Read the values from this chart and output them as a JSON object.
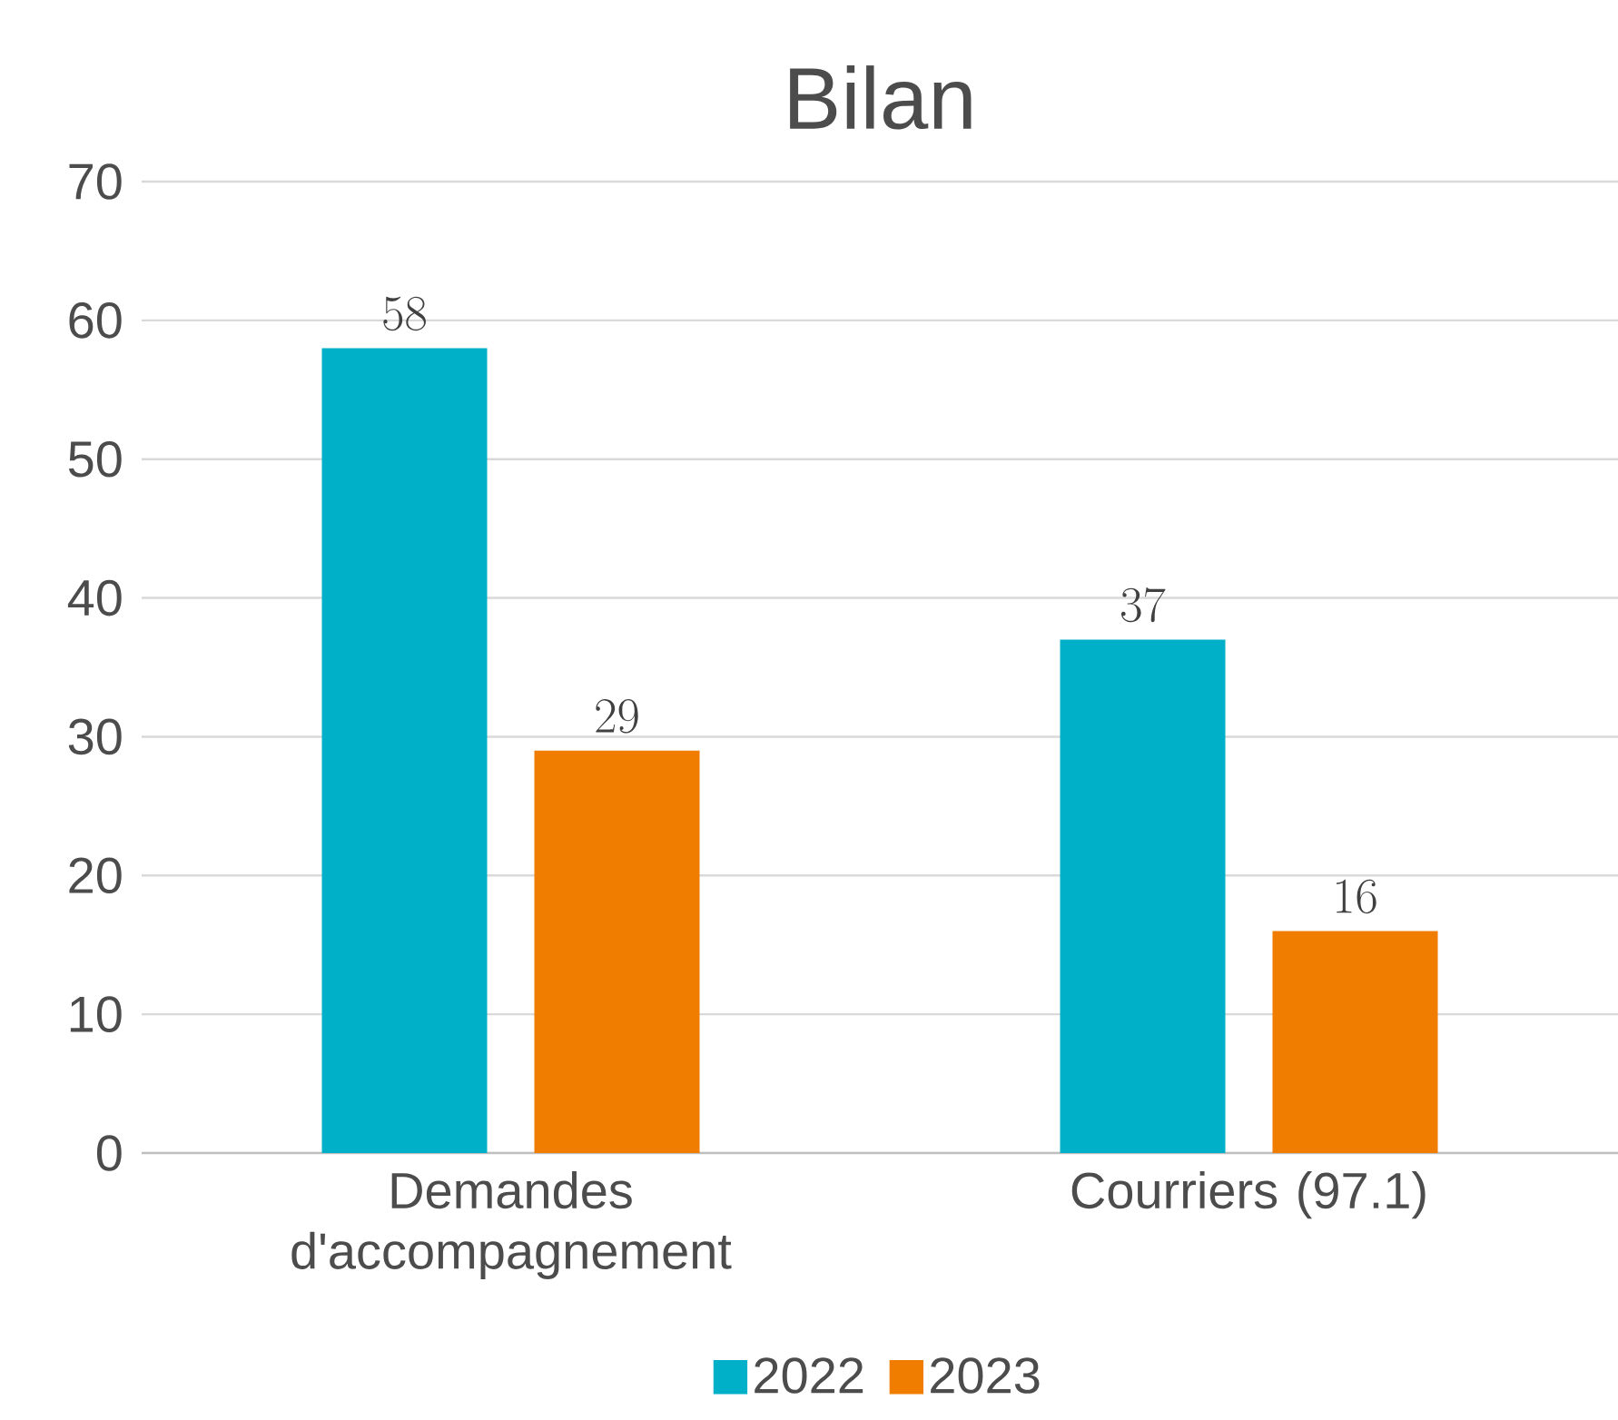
{
  "chart_data": {
    "type": "bar",
    "title": "Bilan",
    "categories": [
      "Demandes d'accompagnement",
      "Courriers (97.1)"
    ],
    "series": [
      {
        "name": "2022",
        "color": "#00b0c8",
        "values": [
          58,
          37
        ]
      },
      {
        "name": "2023",
        "color": "#f07c00",
        "values": [
          29,
          16
        ]
      }
    ],
    "ylim": [
      0,
      70
    ],
    "yticks": [
      0,
      10,
      20,
      30,
      40,
      50,
      60,
      70
    ],
    "grid": "y",
    "legend": "bottom",
    "data_labels": true
  }
}
